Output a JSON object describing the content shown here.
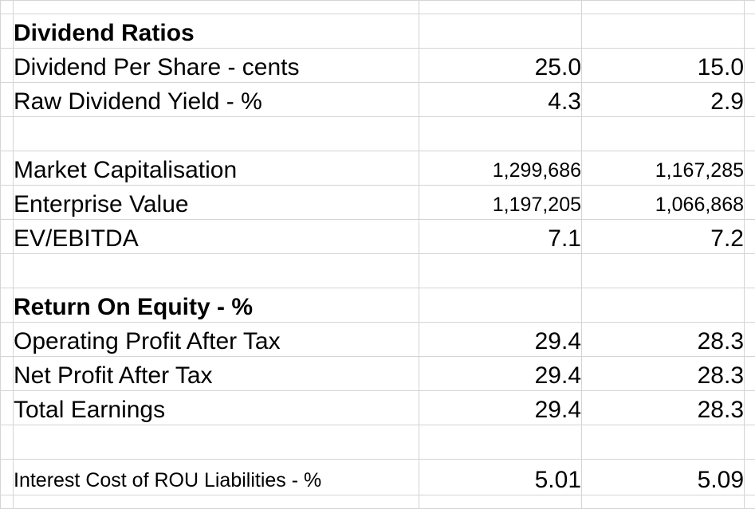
{
  "sections": {
    "dividend_ratios_title": "Dividend Ratios",
    "return_on_equity_title": "Return On Equity - %"
  },
  "rows": {
    "dividend_per_share": {
      "label": "Dividend Per Share - cents",
      "v1": "25.0",
      "v2": "15.0"
    },
    "raw_dividend_yield": {
      "label": "Raw Dividend Yield - %",
      "v1": "4.3",
      "v2": "2.9"
    },
    "market_cap": {
      "label": "Market Capitalisation",
      "v1": "1,299,686",
      "v2": "1,167,285"
    },
    "enterprise_value": {
      "label": "Enterprise Value",
      "v1": "1,197,205",
      "v2": "1,066,868"
    },
    "ev_ebitda": {
      "label": "EV/EBITDA",
      "v1": "7.1",
      "v2": "7.2"
    },
    "op_profit_after_tax": {
      "label": "Operating Profit After Tax",
      "v1": "29.4",
      "v2": "28.3"
    },
    "net_profit_after_tax": {
      "label": "Net Profit After Tax",
      "v1": "29.4",
      "v2": "28.3"
    },
    "total_earnings": {
      "label": "Total Earnings",
      "v1": "29.4",
      "v2": "28.3"
    },
    "interest_cost_rou": {
      "label": "Interest Cost of ROU Liabilities - %",
      "v1": "5.01",
      "v2": "5.09"
    }
  }
}
